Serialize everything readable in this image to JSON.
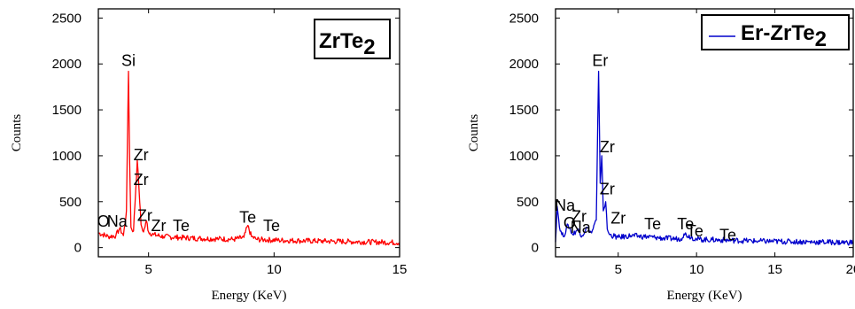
{
  "chart_data": [
    {
      "type": "line",
      "xlabel": "Energy (KeV)",
      "ylabel": "Counts",
      "xlim": [
        3,
        15
      ],
      "ylim": [
        -100,
        2600
      ],
      "xticks": [
        5,
        10,
        15
      ],
      "yticks": [
        0,
        500,
        1000,
        1500,
        2000,
        2500
      ],
      "grid": false,
      "legend": {
        "label": "ZrTe",
        "subscript": "2",
        "line": false,
        "position": "top-right"
      },
      "series": [
        {
          "color": "#ff0000",
          "baseline": 80,
          "x": [
            3.0,
            3.4,
            3.7,
            3.85,
            4.0,
            4.12,
            4.2,
            4.25,
            4.3,
            4.4,
            4.55,
            4.62,
            4.7,
            4.8,
            4.92,
            5.0,
            5.2,
            5.6,
            6.2,
            7.0,
            7.8,
            8.4,
            8.8,
            8.95,
            9.1,
            9.3,
            9.6,
            10.2,
            11.0,
            12.0,
            13.0,
            14.0,
            15.0
          ],
          "values": [
            160,
            120,
            130,
            210,
            130,
            400,
            1920,
            900,
            220,
            180,
            950,
            640,
            250,
            170,
            290,
            170,
            140,
            120,
            110,
            100,
            95,
            90,
            110,
            240,
            120,
            90,
            85,
            80,
            75,
            70,
            65,
            60,
            55
          ]
        }
      ],
      "annotations": [
        {
          "text": "Si",
          "x": 4.2,
          "y": 1980
        },
        {
          "text": "Zr",
          "x": 4.7,
          "y": 950
        },
        {
          "text": "Zr",
          "x": 4.7,
          "y": 680
        },
        {
          "text": "Zr",
          "x": 4.85,
          "y": 290
        },
        {
          "text": "Zr",
          "x": 5.4,
          "y": 180
        },
        {
          "text": "Te",
          "x": 6.3,
          "y": 180
        },
        {
          "text": "Te",
          "x": 8.95,
          "y": 270
        },
        {
          "text": "Te",
          "x": 9.9,
          "y": 180
        },
        {
          "text": "O",
          "x": 3.2,
          "y": 230
        },
        {
          "text": "Na",
          "x": 3.75,
          "y": 230
        }
      ]
    },
    {
      "type": "line",
      "xlabel": "Energy (KeV)",
      "ylabel": "Counts",
      "xlim": [
        1,
        20
      ],
      "ylim": [
        -100,
        2600
      ],
      "xticks": [
        5,
        10,
        15,
        20
      ],
      "yticks": [
        0,
        500,
        1000,
        1500,
        2000,
        2500
      ],
      "grid": false,
      "legend": {
        "label": "Er-ZrTe",
        "subscript": "2",
        "line": true,
        "position": "top-right"
      },
      "series": [
        {
          "color": "#0000cc",
          "baseline": 80,
          "x": [
            1.0,
            1.1,
            1.3,
            1.5,
            1.8,
            2.1,
            2.4,
            2.7,
            3.0,
            3.3,
            3.6,
            3.75,
            3.85,
            3.95,
            4.05,
            4.2,
            4.3,
            4.45,
            5.0,
            5.8,
            6.6,
            7.4,
            8.0,
            9.0,
            9.2,
            10.0,
            11.0,
            12.0,
            13.0,
            14.0,
            16.0,
            18.0,
            20.0
          ],
          "values": [
            60,
            450,
            180,
            120,
            250,
            140,
            200,
            130,
            220,
            160,
            300,
            1920,
            700,
            1000,
            400,
            500,
            200,
            140,
            110,
            130,
            120,
            110,
            100,
            95,
            150,
            90,
            85,
            80,
            75,
            70,
            65,
            60,
            55
          ]
        }
      ],
      "annotations": [
        {
          "text": "Er",
          "x": 3.85,
          "y": 1980
        },
        {
          "text": "Zr",
          "x": 4.3,
          "y": 1040
        },
        {
          "text": "Zr",
          "x": 4.3,
          "y": 580
        },
        {
          "text": "Zr",
          "x": 5.0,
          "y": 260
        },
        {
          "text": "Na",
          "x": 1.6,
          "y": 400
        },
        {
          "text": "O",
          "x": 1.9,
          "y": 210
        },
        {
          "text": "Zr",
          "x": 2.5,
          "y": 280
        },
        {
          "text": "Na",
          "x": 2.6,
          "y": 160
        },
        {
          "text": "Te",
          "x": 7.2,
          "y": 200
        },
        {
          "text": "Te",
          "x": 9.3,
          "y": 200
        },
        {
          "text": "Te",
          "x": 9.9,
          "y": 120
        },
        {
          "text": "Te",
          "x": 12.0,
          "y": 80
        }
      ]
    }
  ]
}
